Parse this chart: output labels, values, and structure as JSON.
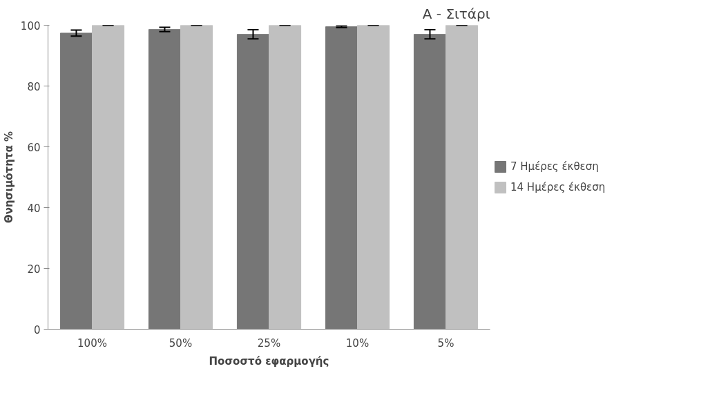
{
  "chart_data": {
    "type": "bar",
    "title": "A - Σιτάρι",
    "xlabel": "Ποσοστό εφαρμογής",
    "ylabel": "Θνησιμότητα %",
    "categories": [
      "100%",
      "50%",
      "25%",
      "10%",
      "5%"
    ],
    "series": [
      {
        "name": "7 Ημέρες έκθεση",
        "color": "#767676",
        "values": [
          97.4,
          98.6,
          97.0,
          99.5,
          97.0
        ],
        "errors": [
          1.0,
          0.7,
          1.5,
          0.3,
          1.5
        ]
      },
      {
        "name": "14 Ημέρες έκθεση",
        "color": "#c0c0c0",
        "values": [
          100,
          100,
          100,
          100,
          100
        ],
        "errors": [
          0,
          0,
          0,
          0,
          0
        ]
      }
    ],
    "ylim": [
      0,
      100
    ],
    "yticks": [
      0,
      20,
      40,
      60,
      80,
      100
    ],
    "grid": false,
    "legend": "right"
  }
}
